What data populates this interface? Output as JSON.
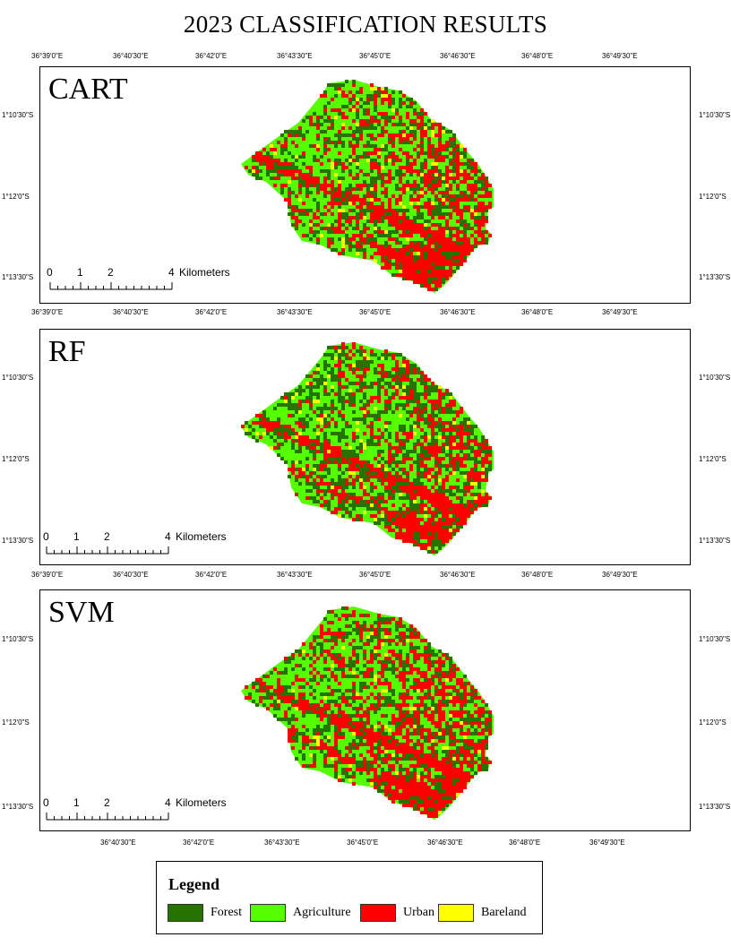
{
  "title": "2023 CLASSIFICATION RESULTS",
  "lon_labels": [
    "36°39'0\"E",
    "36°40'30\"E",
    "36°42'0\"E",
    "36°43'30\"E",
    "36°45'0\"E",
    "36°46'30\"E",
    "36°48'0\"E",
    "36°49'30\"E"
  ],
  "lat_labels": [
    "1°10'30\"S",
    "1°12'0\"S",
    "1°13'30\"S"
  ],
  "panels": [
    {
      "label": "CART",
      "method": "CART"
    },
    {
      "label": "RF",
      "method": "RF"
    },
    {
      "label": "SVM",
      "method": "SVM"
    }
  ],
  "scalebar": {
    "ticks": [
      "0",
      "1",
      "2",
      "4"
    ],
    "unit": "Kilometers"
  },
  "legend": {
    "title": "Legend",
    "items": [
      {
        "label": "Forest",
        "color": "#267300"
      },
      {
        "label": "Agriculture",
        "color": "#55ff00"
      },
      {
        "label": "Urban",
        "color": "#ff0000"
      },
      {
        "label": "Bareland",
        "color": "#ffff00"
      }
    ]
  }
}
